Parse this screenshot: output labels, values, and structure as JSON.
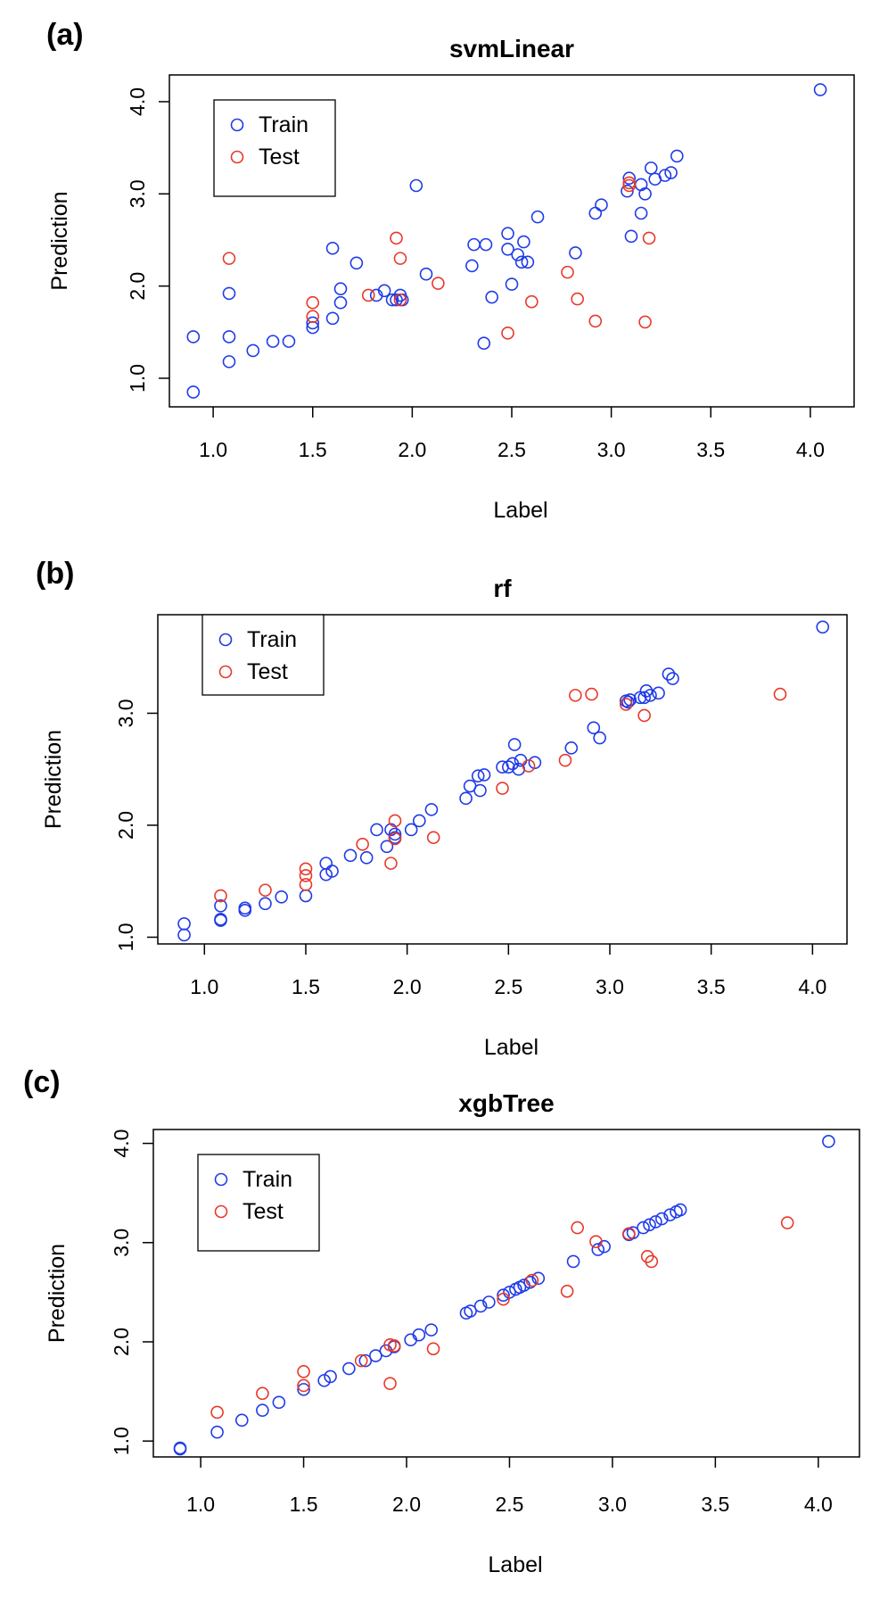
{
  "colors": {
    "train": "#1f3be8",
    "test": "#e8382a",
    "axis": "#000000"
  },
  "chart_data": [
    {
      "type": "scatter",
      "panel_label": "(a)",
      "title": "svmLinear",
      "xlabel": "Label",
      "ylabel": "Prediction",
      "xlim": [
        0.78,
        4.22
      ],
      "ylim": [
        0.69,
        4.29
      ],
      "xticks": [
        "1.0",
        "1.5",
        "2.0",
        "2.5",
        "3.0",
        "3.5",
        "4.0"
      ],
      "yticks": [
        "1.0",
        "2.0",
        "3.0",
        "4.0"
      ],
      "legend": {
        "position": "top-left",
        "entries": [
          "Train",
          "Test"
        ]
      },
      "series": [
        {
          "name": "Train",
          "color": "#1f3be8",
          "x": [
            0.9,
            0.9,
            1.08,
            1.08,
            1.08,
            1.2,
            1.3,
            1.38,
            1.5,
            1.5,
            1.6,
            1.6,
            1.64,
            1.64,
            1.72,
            1.82,
            1.86,
            1.9,
            1.92,
            1.94,
            1.95,
            2.02,
            2.07,
            2.3,
            2.31,
            2.37,
            2.36,
            2.4,
            2.48,
            2.48,
            2.5,
            2.53,
            2.56,
            2.55,
            2.58,
            2.63,
            2.82,
            2.92,
            2.95,
            3.08,
            3.09,
            3.1,
            3.15,
            3.15,
            3.17,
            3.2,
            3.22,
            3.27,
            3.3,
            3.33,
            4.05
          ],
          "y": [
            0.85,
            1.45,
            1.45,
            1.18,
            1.92,
            1.3,
            1.4,
            1.4,
            1.55,
            1.6,
            1.65,
            2.41,
            1.82,
            1.97,
            2.25,
            1.9,
            1.95,
            1.85,
            1.85,
            1.9,
            1.85,
            3.09,
            2.13,
            2.22,
            2.45,
            2.45,
            1.38,
            1.88,
            2.4,
            2.57,
            2.02,
            2.34,
            2.48,
            2.26,
            2.26,
            2.75,
            2.36,
            2.79,
            2.88,
            3.03,
            3.17,
            2.54,
            3.1,
            2.79,
            3.0,
            3.28,
            3.16,
            3.2,
            3.23,
            3.41,
            4.13
          ]
        },
        {
          "name": "Test",
          "color": "#e8382a",
          "x": [
            1.08,
            1.5,
            1.5,
            1.78,
            1.92,
            1.94,
            1.94,
            2.13,
            2.48,
            2.6,
            2.78,
            2.83,
            2.92,
            3.09,
            3.09,
            3.17,
            3.19
          ],
          "y": [
            2.3,
            1.82,
            1.67,
            1.9,
            2.52,
            2.3,
            1.85,
            2.03,
            1.49,
            1.83,
            2.15,
            1.86,
            1.62,
            3.12,
            3.09,
            1.61,
            2.52
          ]
        }
      ]
    },
    {
      "type": "scatter",
      "panel_label": "(b)",
      "title": "rf",
      "xlabel": "Label",
      "ylabel": "Prediction",
      "xlim": [
        0.77,
        4.17
      ],
      "ylim": [
        0.94,
        3.88
      ],
      "xticks": [
        "1.0",
        "1.5",
        "2.0",
        "2.5",
        "3.0",
        "3.5",
        "4.0"
      ],
      "yticks": [
        "1.0",
        "2.0",
        "3.0"
      ],
      "legend": {
        "position": "top-left",
        "entries": [
          "Train",
          "Test"
        ]
      },
      "series": [
        {
          "name": "Train",
          "color": "#1f3be8",
          "x": [
            0.9,
            0.9,
            1.08,
            1.08,
            1.08,
            1.2,
            1.2,
            1.3,
            1.38,
            1.5,
            1.6,
            1.6,
            1.63,
            1.72,
            1.8,
            1.85,
            1.9,
            1.92,
            1.94,
            1.94,
            2.02,
            2.06,
            2.12,
            2.29,
            2.31,
            2.35,
            2.36,
            2.38,
            2.47,
            2.5,
            2.52,
            2.53,
            2.55,
            2.56,
            2.63,
            2.81,
            2.92,
            2.95,
            3.08,
            3.09,
            3.1,
            3.15,
            3.17,
            3.18,
            3.2,
            3.24,
            3.29,
            3.31,
            4.05
          ],
          "y": [
            1.12,
            1.02,
            1.28,
            1.15,
            1.16,
            1.24,
            1.26,
            1.3,
            1.36,
            1.37,
            1.66,
            1.56,
            1.59,
            1.73,
            1.71,
            1.96,
            1.81,
            1.96,
            1.89,
            1.92,
            1.96,
            2.04,
            2.14,
            2.24,
            2.35,
            2.44,
            2.31,
            2.45,
            2.52,
            2.52,
            2.55,
            2.72,
            2.5,
            2.58,
            2.56,
            2.69,
            2.87,
            2.78,
            3.11,
            3.1,
            3.12,
            3.14,
            3.14,
            3.2,
            3.16,
            3.18,
            3.35,
            3.31,
            3.77
          ]
        },
        {
          "name": "Test",
          "color": "#e8382a",
          "x": [
            1.08,
            1.3,
            1.5,
            1.5,
            1.5,
            1.78,
            1.92,
            1.94,
            1.94,
            2.13,
            2.47,
            2.6,
            2.78,
            2.83,
            2.91,
            3.08,
            3.17,
            3.84
          ],
          "y": [
            1.37,
            1.42,
            1.61,
            1.55,
            1.47,
            1.83,
            1.66,
            2.04,
            1.88,
            1.89,
            2.33,
            2.53,
            2.58,
            3.16,
            3.17,
            3.08,
            2.98,
            3.17
          ]
        }
      ]
    },
    {
      "type": "scatter",
      "panel_label": "(c)",
      "title": "xgbTree",
      "xlabel": "Label",
      "ylabel": "Prediction",
      "xlim": [
        0.77,
        4.2
      ],
      "ylim": [
        0.84,
        4.14
      ],
      "xticks": [
        "1.0",
        "1.5",
        "2.0",
        "2.5",
        "3.0",
        "3.5",
        "4.0"
      ],
      "yticks": [
        "1.0",
        "2.0",
        "3.0",
        "4.0"
      ],
      "legend": {
        "position": "top-left",
        "entries": [
          "Train",
          "Test"
        ]
      },
      "series": [
        {
          "name": "Train",
          "color": "#1f3be8",
          "x": [
            0.9,
            0.9,
            1.08,
            1.2,
            1.3,
            1.38,
            1.5,
            1.6,
            1.63,
            1.72,
            1.8,
            1.85,
            1.9,
            1.94,
            2.02,
            2.06,
            2.12,
            2.29,
            2.31,
            2.36,
            2.4,
            2.47,
            2.5,
            2.53,
            2.55,
            2.57,
            2.6,
            2.64,
            2.81,
            2.93,
            2.96,
            3.08,
            3.1,
            3.15,
            3.18,
            3.21,
            3.24,
            3.28,
            3.31,
            3.33,
            4.05
          ],
          "y": [
            0.92,
            0.93,
            1.09,
            1.21,
            1.31,
            1.39,
            1.52,
            1.61,
            1.65,
            1.73,
            1.81,
            1.86,
            1.91,
            1.95,
            2.02,
            2.07,
            2.12,
            2.29,
            2.31,
            2.36,
            2.4,
            2.47,
            2.5,
            2.53,
            2.55,
            2.57,
            2.6,
            2.64,
            2.81,
            2.93,
            2.96,
            3.08,
            3.1,
            3.15,
            3.18,
            3.21,
            3.24,
            3.28,
            3.31,
            3.33,
            4.02
          ]
        },
        {
          "name": "Test",
          "color": "#e8382a",
          "x": [
            1.08,
            1.3,
            1.5,
            1.5,
            1.78,
            1.92,
            1.92,
            1.94,
            2.13,
            2.47,
            2.61,
            2.78,
            2.83,
            2.92,
            3.08,
            3.17,
            3.19,
            3.85
          ],
          "y": [
            1.29,
            1.48,
            1.56,
            1.7,
            1.81,
            1.97,
            1.58,
            1.96,
            1.93,
            2.43,
            2.62,
            2.51,
            3.15,
            3.01,
            3.09,
            2.86,
            2.81,
            3.2
          ]
        }
      ]
    }
  ]
}
